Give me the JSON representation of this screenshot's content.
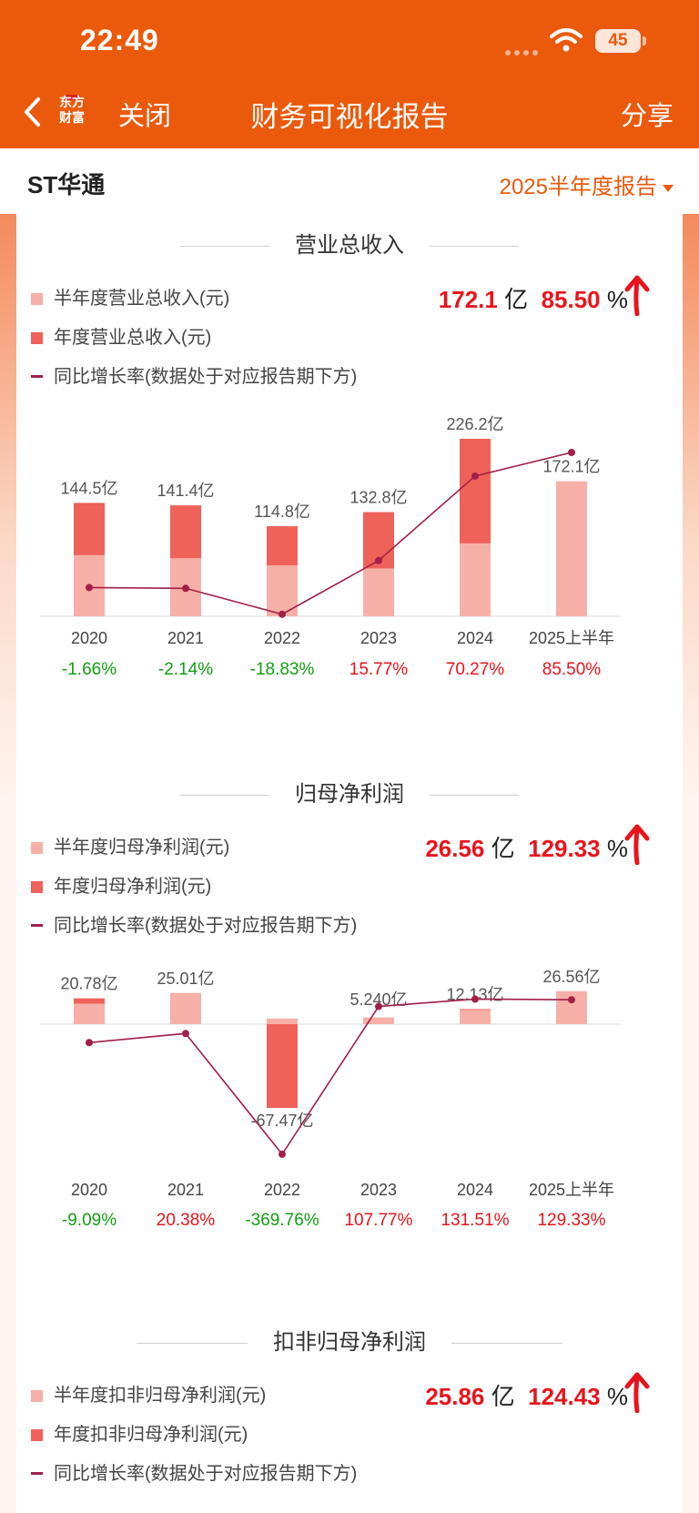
{
  "status_bar": {
    "time": "22:49",
    "battery": "45"
  },
  "nav": {
    "logo_line1": "东方",
    "logo_line2": "财富",
    "close_label": "关闭",
    "title": "财务可视化报告",
    "share_label": "分享"
  },
  "company": {
    "name": "ST华通",
    "report_period": "2025半年度报告"
  },
  "colors": {
    "header": "#eb5a0c",
    "half_bar": "#f7b0a8",
    "annual_bar": "#ef6259",
    "line": "#a31f48",
    "positive": "#e8141c",
    "negative": "#12a012"
  },
  "sections": [
    {
      "title": "营业总收入",
      "legend": {
        "half": "半年度营业总收入(元)",
        "annual": "年度营业总收入(元)",
        "growth": "同比增长率(数据处于对应报告期下方)"
      },
      "headline": {
        "value": "172.1",
        "unit": "亿",
        "percent": "85.50",
        "percent_sign": "%"
      },
      "chart_data": {
        "type": "bar",
        "categories": [
          "2020",
          "2021",
          "2022",
          "2023",
          "2024",
          "2025上半年"
        ],
        "series": [
          {
            "name": "半年度营业总收入(元)",
            "values": [
              78,
              74,
              65,
              61,
              93,
              172.1
            ]
          },
          {
            "name": "年度营业总收入(元)",
            "values": [
              144.5,
              141.4,
              114.8,
              132.8,
              226.2,
              null
            ]
          }
        ],
        "data_labels": [
          "144.5亿",
          "141.4亿",
          "114.8亿",
          "132.8亿",
          "226.2亿",
          "172.1亿"
        ],
        "label_values": [
          144.5,
          141.4,
          114.8,
          132.8,
          226.2,
          172.1
        ],
        "growth": [
          -1.66,
          -2.14,
          -18.83,
          15.77,
          70.27,
          85.5
        ],
        "growth_labels": [
          "-1.66%",
          "-2.14%",
          "-18.83%",
          "15.77%",
          "70.27%",
          "85.50%"
        ],
        "ylim": [
          0,
          240
        ],
        "growth_lim": [
          -19,
          85.5
        ]
      }
    },
    {
      "title": "归母净利润",
      "legend": {
        "half": "半年度归母净利润(元)",
        "annual": "年度归母净利润(元)",
        "growth": "同比增长率(数据处于对应报告期下方)"
      },
      "headline": {
        "value": "26.56",
        "unit": "亿",
        "percent": "129.33",
        "percent_sign": "%"
      },
      "chart_data": {
        "type": "bar",
        "categories": [
          "2020",
          "2021",
          "2022",
          "2023",
          "2024",
          "2025上半年"
        ],
        "series": [
          {
            "name": "半年度归母净利润(元)",
            "values": [
              16.5,
              25.01,
              4.5,
              5.2,
              11.5,
              26.56
            ]
          },
          {
            "name": "年度归母净利润(元)",
            "values": [
              20.78,
              25.01,
              -67.47,
              5.24,
              12.13,
              null
            ]
          }
        ],
        "data_labels": [
          "20.78亿",
          "25.01亿",
          "-67.47亿",
          "5.240亿",
          "12.13亿",
          "26.56亿"
        ],
        "label_values": [
          20.78,
          25.01,
          -67.47,
          5.24,
          12.13,
          26.56
        ],
        "growth": [
          -9.09,
          20.38,
          -369.76,
          107.77,
          131.51,
          129.33
        ],
        "growth_labels": [
          "-9.09%",
          "20.38%",
          "-369.76%",
          "107.77%",
          "131.51%",
          "129.33%"
        ],
        "ylim": [
          -80,
          40
        ],
        "growth_lim": [
          -370,
          130
        ]
      }
    },
    {
      "title": "扣非归母净利润",
      "legend": {
        "half": "半年度扣非归母净利润(元)",
        "annual": "年度扣非归母净利润(元)",
        "growth": "同比增长率(数据处于对应报告期下方)"
      },
      "headline": {
        "value": "25.86",
        "unit": "亿",
        "percent": "124.43",
        "percent_sign": "%"
      }
    }
  ]
}
